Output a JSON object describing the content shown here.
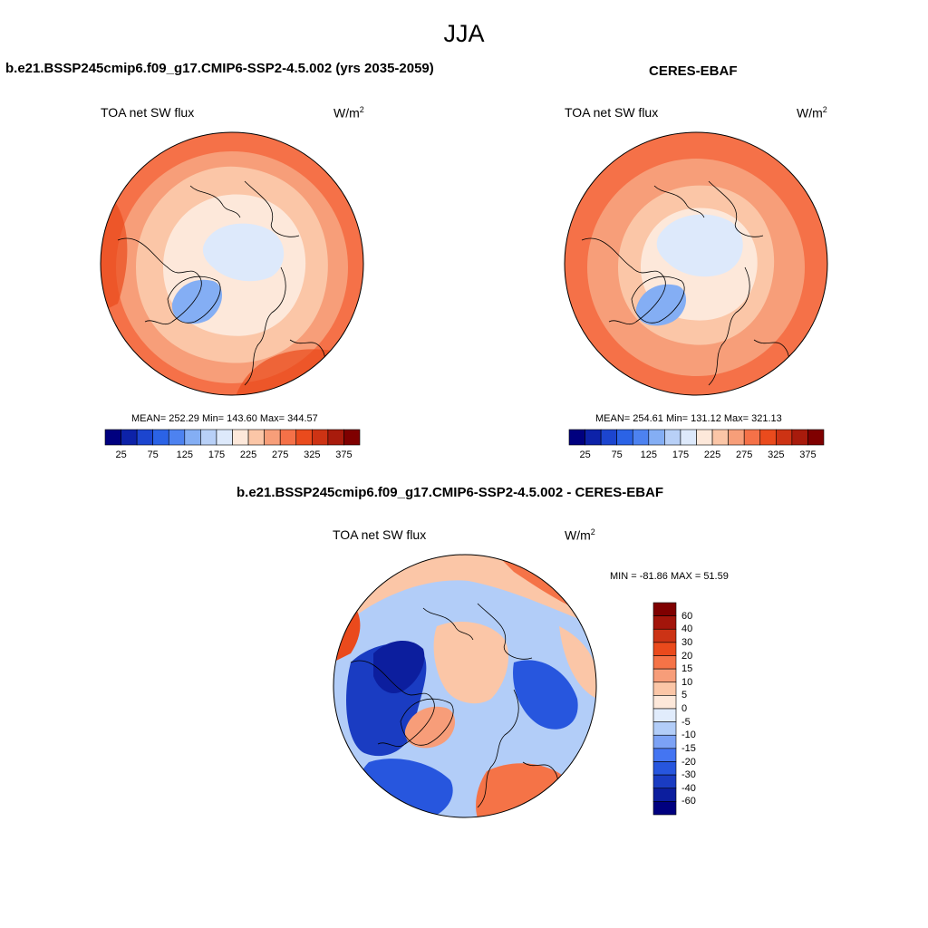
{
  "figure_title": "JJA",
  "colors": {
    "abs_palette": [
      "#00007f",
      "#0d22a8",
      "#1c45cf",
      "#2b63e6",
      "#4d82f0",
      "#84aef4",
      "#b8d0f7",
      "#dde9fb",
      "#fde8da",
      "#fbc6a7",
      "#f79e79",
      "#f57148",
      "#ea4b1d",
      "#cd3314",
      "#a81b0c",
      "#7f0000"
    ],
    "diff_palette": [
      "#00007f",
      "#0c1e9e",
      "#1a3cc2",
      "#2756de",
      "#4475f2",
      "#7ca2f5",
      "#b2cdf8",
      "#e1ecfc",
      "#fde8da",
      "#fbc6a7",
      "#f79d79",
      "#f57347",
      "#ea4a1c",
      "#cc3315",
      "#a3150b",
      "#7f0000"
    ]
  },
  "panels": {
    "model": {
      "title": "b.e21.BSSP245cmip6.f09_g17.CMIP6-SSP2-4.5.002 (yrs 2035-2059)",
      "variable": "TOA net SW flux",
      "units": "W/m",
      "units_exp": "2",
      "stats": "MEAN= 252.29  Min= 143.60  Max= 344.57"
    },
    "obs": {
      "title": "CERES-EBAF",
      "variable": "TOA net SW flux",
      "units": "W/m",
      "units_exp": "2",
      "stats": "MEAN= 254.61  Min= 131.12  Max= 321.13"
    },
    "diff": {
      "title": "b.e21.BSSP245cmip6.f09_g17.CMIP6-SSP2-4.5.002 - CERES-EBAF",
      "variable": "TOA net SW flux",
      "units": "W/m",
      "units_exp": "2",
      "stats": "MIN = -81.86 MAX =  51.59"
    }
  },
  "abs_colorbar_ticks": [
    "25",
    "75",
    "125",
    "175",
    "225",
    "275",
    "325",
    "375"
  ],
  "diff_colorbar_ticks": [
    "60",
    "40",
    "30",
    "20",
    "15",
    "10",
    "5",
    "0",
    "-5",
    "-10",
    "-15",
    "-20",
    "-30",
    "-40",
    "-60"
  ],
  "chart_data": [
    {
      "type": "heatmap",
      "title": "TOA net SW flux",
      "projection": "north polar stereographic",
      "units": "W/m2",
      "mean": 252.29,
      "min": 143.6,
      "max": 344.57,
      "levels": [
        25,
        50,
        75,
        100,
        125,
        150,
        175,
        200,
        225,
        250,
        275,
        300,
        325,
        350,
        375
      ]
    },
    {
      "type": "heatmap",
      "title": "TOA net SW flux",
      "projection": "north polar stereographic",
      "units": "W/m2",
      "mean": 254.61,
      "min": 131.12,
      "max": 321.13,
      "levels": [
        25,
        50,
        75,
        100,
        125,
        150,
        175,
        200,
        225,
        250,
        275,
        300,
        325,
        350,
        375
      ]
    },
    {
      "type": "heatmap",
      "title": "TOA net SW flux",
      "projection": "north polar stereographic",
      "units": "W/m2",
      "min": -81.86,
      "max": 51.59,
      "levels": [
        -60,
        -40,
        -30,
        -20,
        -15,
        -10,
        -5,
        0,
        5,
        10,
        15,
        20,
        30,
        40,
        60
      ]
    }
  ]
}
